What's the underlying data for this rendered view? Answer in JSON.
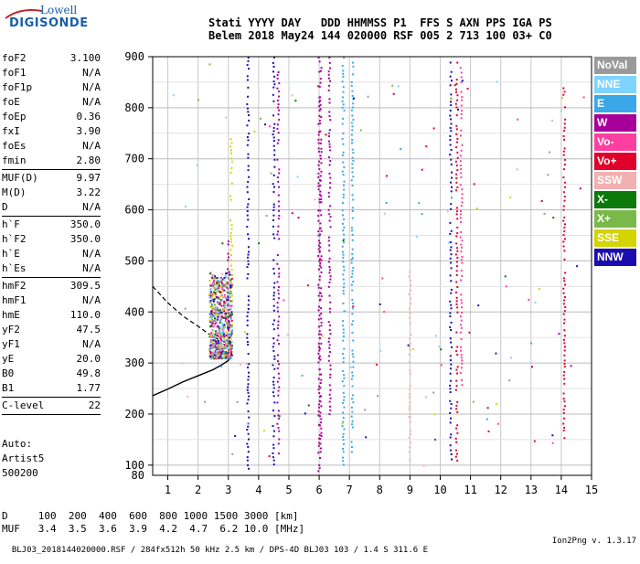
{
  "logo": {
    "top": "Lowell",
    "main": "DIGISONDE"
  },
  "header": {
    "line1": "Stati YYYY DAY   DDD HHMMSS P1  FFS S AXN PPS IGA PS",
    "line2": "Belem 2018 May24 144 020000 RSF 005 2 713 100 03+ C0"
  },
  "params": [
    {
      "k": "foF2",
      "v": "3.100"
    },
    {
      "k": "foF1",
      "v": "N/A"
    },
    {
      "k": "foF1p",
      "v": "N/A"
    },
    {
      "k": "foE",
      "v": "N/A"
    },
    {
      "k": "foEp",
      "v": "0.36"
    },
    {
      "k": "fxI",
      "v": "3.90"
    },
    {
      "k": "foEs",
      "v": "N/A"
    },
    {
      "k": "fmin",
      "v": "2.80"
    },
    {
      "sep": true
    },
    {
      "k": "MUF(D)",
      "v": "9.97"
    },
    {
      "k": "M(D)",
      "v": "3.22"
    },
    {
      "k": "D",
      "v": "N/A"
    },
    {
      "sep": true
    },
    {
      "k": "h`F",
      "v": "350.0"
    },
    {
      "k": "h`F2",
      "v": "350.0"
    },
    {
      "k": "h`E",
      "v": "N/A"
    },
    {
      "k": "h`Es",
      "v": "N/A"
    },
    {
      "sep": true
    },
    {
      "k": "hmF2",
      "v": "309.5"
    },
    {
      "k": "hmF1",
      "v": "N/A"
    },
    {
      "k": "hmE",
      "v": "110.0"
    },
    {
      "k": "yF2",
      "v": "47.5"
    },
    {
      "k": "yF1",
      "v": "N/A"
    },
    {
      "k": "yE",
      "v": "20.0"
    },
    {
      "k": "B0",
      "v": "49.8"
    },
    {
      "k": "B1",
      "v": "1.77"
    },
    {
      "sep": true
    },
    {
      "k": "C-level",
      "v": "22"
    },
    {
      "sep": true
    }
  ],
  "auto": {
    "line1": "Auto:",
    "line2": "Artist5",
    "line3": "500200"
  },
  "legend": [
    {
      "label": "NoVal",
      "color": "#9a9a9a"
    },
    {
      "label": "NNE",
      "color": "#7fd3ff"
    },
    {
      "label": "E",
      "color": "#3aa7e8"
    },
    {
      "label": "W",
      "color": "#a7009a"
    },
    {
      "label": "Vo-",
      "color": "#ff3fa0"
    },
    {
      "label": "Vo+",
      "color": "#e0002a"
    },
    {
      "label": "SSW",
      "color": "#f2b0b0"
    },
    {
      "label": "X-",
      "color": "#0b7a0b"
    },
    {
      "label": "X+",
      "color": "#7ab84a"
    },
    {
      "label": "SSE",
      "color": "#d4d400"
    },
    {
      "label": "NNW",
      "color": "#1a0db0"
    }
  ],
  "distance_muf": {
    "d_line": "D     100  200  400  600  800 1000 1500 3000 [km]",
    "muf_line": "MUF   3.4  3.5  3.6  3.9  4.2  4.7  6.2 10.0 [MHz]"
  },
  "footer": {
    "left": "BLJ03_2018144020000.RSF / 284fx512h 50 kHz 2.5 km / DPS-4D BLJ03 103 / 1.4 S 311.6 E",
    "right": "Ion2Png v. 1.3.17"
  },
  "chart_data": {
    "type": "scatter",
    "title": "",
    "xlabel": "",
    "ylabel": "",
    "xlim": [
      0.5,
      15
    ],
    "ylim": [
      80,
      900
    ],
    "x_ticks": [
      1,
      2,
      3,
      4,
      5,
      6,
      7,
      8,
      9,
      10,
      11,
      12,
      13,
      14,
      15
    ],
    "y_ticks": [
      100,
      200,
      300,
      400,
      500,
      600,
      700,
      800,
      900
    ],
    "grid": true,
    "profile_solid": [
      [
        0.5,
        236
      ],
      [
        1.0,
        249
      ],
      [
        1.5,
        263
      ],
      [
        2.0,
        275
      ],
      [
        2.5,
        287
      ],
      [
        2.8,
        297
      ],
      [
        3.0,
        305
      ],
      [
        3.1,
        315
      ]
    ],
    "profile_dashed": [
      [
        0.5,
        450
      ],
      [
        1.0,
        418
      ],
      [
        1.5,
        392
      ],
      [
        2.0,
        372
      ],
      [
        2.4,
        355
      ],
      [
        2.8,
        342
      ],
      [
        3.1,
        340
      ]
    ],
    "traces": [
      {
        "x": 3.0,
        "y0": 310,
        "y1": 540,
        "color": "#a7009a"
      },
      {
        "x": 3.1,
        "y0": 380,
        "y1": 740,
        "color": "#d4d400"
      },
      {
        "x": 3.65,
        "y0": 82,
        "y1": 900,
        "color": "#1a0db0"
      },
      {
        "x": 4.5,
        "y0": 100,
        "y1": 900,
        "color": "#1a0db0"
      },
      {
        "x": 4.65,
        "y0": 120,
        "y1": 880,
        "color": "#a7009a"
      },
      {
        "x": 6.0,
        "y0": 85,
        "y1": 900,
        "color": "#a7009a"
      },
      {
        "x": 6.05,
        "y0": 120,
        "y1": 880,
        "color": "#a7009a"
      },
      {
        "x": 6.35,
        "y0": 200,
        "y1": 900,
        "color": "#a7009a"
      },
      {
        "x": 6.8,
        "y0": 100,
        "y1": 900,
        "color": "#3aa7e8"
      },
      {
        "x": 7.1,
        "y0": 120,
        "y1": 890,
        "color": "#3aa7e8"
      },
      {
        "x": 9.0,
        "y0": 110,
        "y1": 480,
        "color": "#f2b0b0"
      },
      {
        "x": 10.35,
        "y0": 100,
        "y1": 900,
        "color": "#1a0db0"
      },
      {
        "x": 10.55,
        "y0": 110,
        "y1": 890,
        "color": "#e0002a"
      },
      {
        "x": 10.7,
        "y0": 250,
        "y1": 880,
        "color": "#ff3fa0"
      },
      {
        "x": 14.1,
        "y0": 150,
        "y1": 840,
        "color": "#e0002a"
      }
    ],
    "cluster": {
      "x_min": 2.0,
      "x_max": 3.1,
      "y_min": 310,
      "y_max": 480
    }
  }
}
